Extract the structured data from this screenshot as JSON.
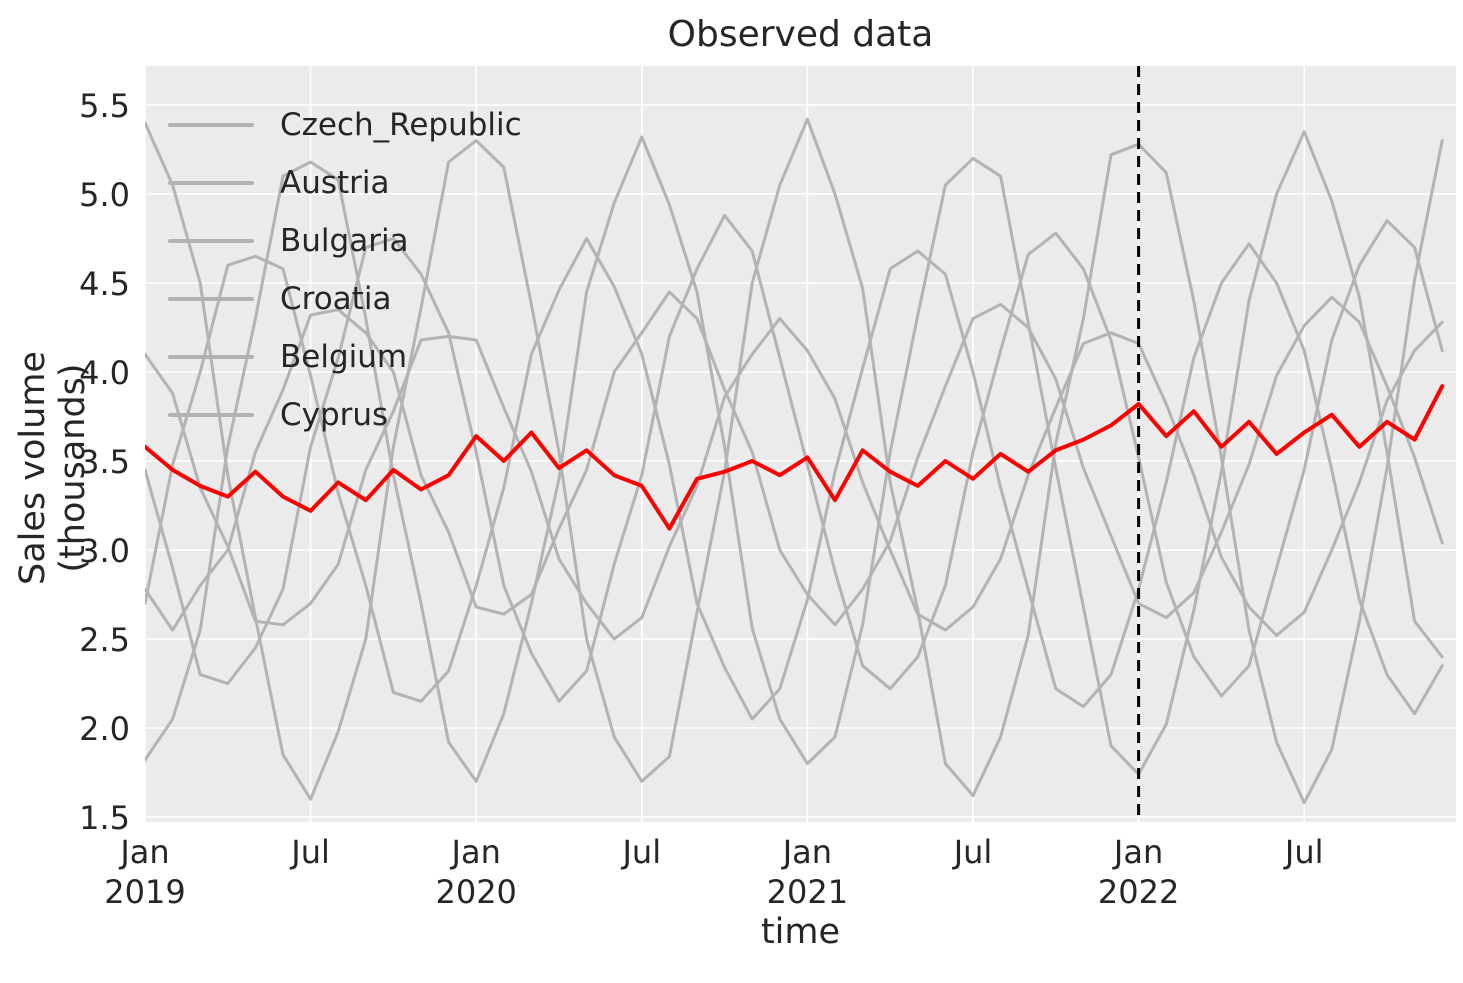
{
  "figure": {
    "title": "Observed data",
    "xlabel": "time",
    "ylabel": "Sales volume (thousands)"
  },
  "chart_data": {
    "type": "line",
    "title": "Observed data",
    "xlabel": "time",
    "ylabel": "Sales volume (thousands)",
    "x_start": "2019-01",
    "x_frequency": "monthly",
    "n_points_per_series": 48,
    "x_total_months_span": 47.5,
    "ylim": [
      1.47,
      5.72
    ],
    "yticks": [
      1.5,
      2.0,
      2.5,
      3.0,
      3.5,
      4.0,
      4.5,
      5.0,
      5.5
    ],
    "xticks": [
      {
        "t": 0,
        "line1": "Jan",
        "line2": "2019"
      },
      {
        "t": 6,
        "line1": "Jul",
        "line2": ""
      },
      {
        "t": 12,
        "line1": "Jan",
        "line2": "2020"
      },
      {
        "t": 18,
        "line1": "Jul",
        "line2": ""
      },
      {
        "t": 24,
        "line1": "Jan",
        "line2": "2021"
      },
      {
        "t": 30,
        "line1": "Jul",
        "line2": ""
      },
      {
        "t": 36,
        "line1": "Jan",
        "line2": "2022"
      },
      {
        "t": 42,
        "line1": "Jul",
        "line2": ""
      }
    ],
    "grid": {
      "on": true,
      "color": "#ffffff",
      "background": "#ebebeb"
    },
    "legend": {
      "position": "upper left",
      "frame": false,
      "entries": [
        "Czech_Republic",
        "Austria",
        "Bulgaria",
        "Croatia",
        "Belgium",
        "Cyprus"
      ],
      "handle_color": "#b3b3b3"
    },
    "vline": {
      "t": 36,
      "date": "2022-01",
      "style": "dashed",
      "color": "#000000",
      "width": 3
    },
    "colors": {
      "gray_series": "#b3b3b3",
      "highlight_series": "#ff0000"
    },
    "series": [
      {
        "name": "Czech_Republic",
        "color": "#b3b3b3",
        "width": 3,
        "values": [
          5.4,
          5.05,
          4.5,
          3.42,
          2.62,
          1.85,
          1.6,
          1.98,
          2.5,
          3.58,
          4.36,
          5.18,
          5.3,
          5.15,
          4.38,
          3.55,
          2.5,
          1.95,
          1.7,
          1.84,
          2.65,
          3.44,
          4.5,
          5.05,
          5.42,
          5.0,
          4.47,
          3.38,
          2.66,
          1.8,
          1.62,
          1.95,
          2.52,
          3.6,
          4.3,
          5.22,
          5.28,
          5.12,
          4.4,
          3.52,
          2.55,
          1.92,
          1.58,
          1.88,
          2.6,
          3.46,
          4.52,
          5.3
        ]
      },
      {
        "name": "Austria",
        "color": "#b3b3b3",
        "width": 3,
        "values": [
          1.82,
          2.05,
          2.55,
          3.58,
          4.3,
          5.1,
          5.18,
          5.08,
          4.3,
          3.42,
          2.7,
          1.92,
          1.7,
          2.08,
          2.7,
          3.4,
          4.45,
          4.95,
          5.32,
          4.94,
          4.45,
          3.58,
          2.56,
          2.05,
          1.8,
          1.95,
          2.58,
          3.55,
          4.32,
          5.05,
          5.2,
          5.1,
          4.28,
          3.46,
          2.68,
          1.9,
          1.74,
          2.02,
          2.66,
          3.44,
          4.4,
          5.0,
          5.35,
          4.96,
          4.42,
          3.55,
          2.6,
          2.4
        ]
      },
      {
        "name": "Bulgaria",
        "color": "#b3b3b3",
        "width": 3,
        "values": [
          3.45,
          2.9,
          2.3,
          2.25,
          2.45,
          2.78,
          3.58,
          4.08,
          4.7,
          4.75,
          4.55,
          4.22,
          3.55,
          2.8,
          2.42,
          2.15,
          2.32,
          2.92,
          3.42,
          4.2,
          4.58,
          4.88,
          4.68,
          4.08,
          3.48,
          2.88,
          2.35,
          2.22,
          2.4,
          2.8,
          3.55,
          4.12,
          4.66,
          4.78,
          4.58,
          4.18,
          3.52,
          2.82,
          2.4,
          2.18,
          2.35,
          2.9,
          3.45,
          4.18,
          4.6,
          4.85,
          4.7,
          4.12
        ]
      },
      {
        "name": "Croatia",
        "color": "#b3b3b3",
        "width": 3,
        "values": [
          2.7,
          3.48,
          4.0,
          4.6,
          4.65,
          4.58,
          3.98,
          3.32,
          2.8,
          2.2,
          2.15,
          2.32,
          2.8,
          3.35,
          4.1,
          4.46,
          4.75,
          4.48,
          4.1,
          3.48,
          2.7,
          2.34,
          2.05,
          2.22,
          2.72,
          3.44,
          4.02,
          4.58,
          4.68,
          4.55,
          4.0,
          3.35,
          2.78,
          2.22,
          2.12,
          2.3,
          2.78,
          3.38,
          4.08,
          4.5,
          4.72,
          4.5,
          4.12,
          3.45,
          2.72,
          2.3,
          2.08,
          2.35
        ]
      },
      {
        "name": "Belgium",
        "color": "#b3b3b3",
        "width": 3,
        "values": [
          2.78,
          2.55,
          2.8,
          3.0,
          3.55,
          3.9,
          4.32,
          4.35,
          4.22,
          4.0,
          3.42,
          3.1,
          2.68,
          2.64,
          2.75,
          3.12,
          3.45,
          4.0,
          4.22,
          4.45,
          4.3,
          3.9,
          3.55,
          3.0,
          2.75,
          2.58,
          2.78,
          3.05,
          3.52,
          3.92,
          4.3,
          4.38,
          4.25,
          3.96,
          3.46,
          3.08,
          2.7,
          2.62,
          2.76,
          3.1,
          3.48,
          3.98,
          4.26,
          4.42,
          4.28,
          3.92,
          3.52,
          3.04
        ]
      },
      {
        "name": "Cyprus",
        "color": "#b3b3b3",
        "width": 3,
        "values": [
          4.1,
          3.88,
          3.35,
          3.02,
          2.6,
          2.58,
          2.7,
          2.92,
          3.45,
          3.78,
          4.18,
          4.2,
          4.18,
          3.8,
          3.44,
          2.95,
          2.7,
          2.5,
          2.62,
          3.02,
          3.36,
          3.86,
          4.1,
          4.3,
          4.12,
          3.85,
          3.38,
          3.0,
          2.64,
          2.55,
          2.68,
          2.95,
          3.42,
          3.8,
          4.16,
          4.22,
          4.16,
          3.82,
          3.42,
          2.96,
          2.68,
          2.52,
          2.65,
          3.0,
          3.38,
          3.84,
          4.12,
          4.28
        ]
      },
      {
        "name": "red_highlight",
        "legend_label": null,
        "color": "#ff0000",
        "width": 4,
        "values": [
          3.58,
          3.45,
          3.36,
          3.3,
          3.44,
          3.3,
          3.22,
          3.38,
          3.28,
          3.45,
          3.34,
          3.42,
          3.64,
          3.5,
          3.66,
          3.46,
          3.56,
          3.42,
          3.36,
          3.12,
          3.4,
          3.44,
          3.5,
          3.42,
          3.52,
          3.28,
          3.56,
          3.44,
          3.36,
          3.5,
          3.4,
          3.54,
          3.44,
          3.56,
          3.62,
          3.7,
          3.82,
          3.64,
          3.78,
          3.58,
          3.72,
          3.54,
          3.66,
          3.76,
          3.58,
          3.72,
          3.62,
          3.92
        ]
      }
    ]
  }
}
